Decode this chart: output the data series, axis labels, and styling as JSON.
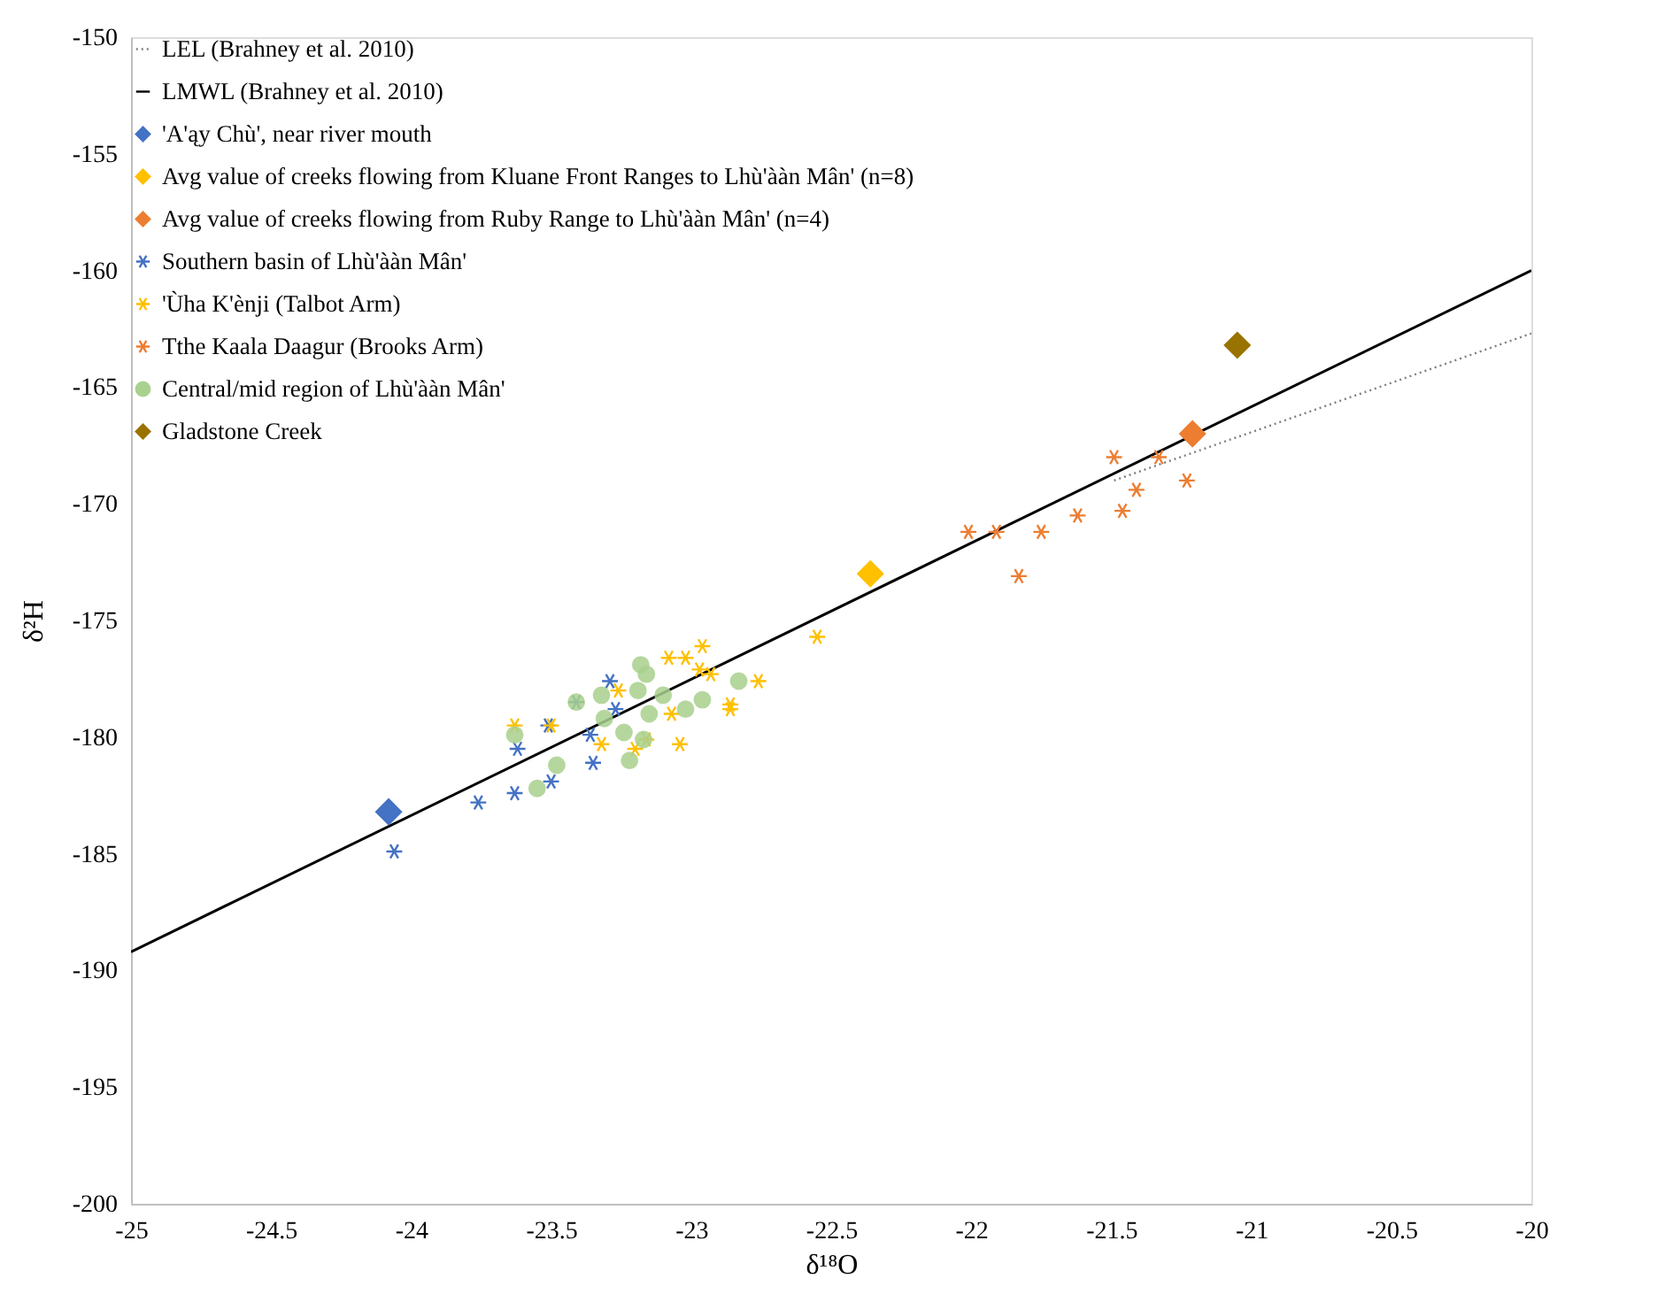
{
  "chart_data": {
    "type": "scatter",
    "xlabel": "δ¹⁸O",
    "ylabel": "δ²H",
    "xlim": [
      -25,
      -20
    ],
    "xticks": [
      -25,
      -24.5,
      -24,
      -23.5,
      -23,
      -22.5,
      -22,
      -21.5,
      -21,
      -20.5,
      -20
    ],
    "ylim": [
      -200,
      -150
    ],
    "yticks": [
      -200,
      -195,
      -190,
      -185,
      -180,
      -175,
      -170,
      -165,
      -160,
      -155,
      -150
    ],
    "grid": false,
    "legend": "top left",
    "series": [
      {
        "name": "LEL (Brahney et al. 2010)",
        "type": "line",
        "line_style": "dotted",
        "color": "#7f7f7f",
        "x": [
          -21.49,
          -20
        ],
        "values": [
          -169.0,
          -162.7
        ]
      },
      {
        "name": "LMWL (Brahney et al. 2010)",
        "type": "line",
        "line_style": "solid",
        "color": "#000000",
        "x": [
          -25,
          -20
        ],
        "values": [
          -189.2,
          -160.0
        ]
      },
      {
        "name": "'A'ąy Chù', near river mouth",
        "marker": "diamond",
        "color": "#4472c4",
        "x": [
          -24.08
        ],
        "values": [
          -183.2
        ]
      },
      {
        "name": "Avg value of creeks flowing  from Kluane Front Ranges to Lhù'ààn Mân' (n=8)",
        "marker": "diamond",
        "color": "#ffc000",
        "x": [
          -22.36
        ],
        "values": [
          -173.0
        ]
      },
      {
        "name": "Avg value of creeks flowing  from Ruby Range  to Lhù'ààn Mân' (n=4)",
        "marker": "diamond",
        "color": "#ed7d31",
        "x": [
          -21.21
        ],
        "values": [
          -167.0
        ]
      },
      {
        "name": "Southern basin of Lhù'ààn Mân'",
        "marker": "cross",
        "color": "#4472c4",
        "x": [
          -24.06,
          -23.76,
          -23.63,
          -23.5,
          -23.62,
          -23.51,
          -23.35,
          -23.36,
          -23.29,
          -23.41,
          -23.27
        ],
        "values": [
          -184.9,
          -182.8,
          -182.4,
          -181.9,
          -180.5,
          -179.5,
          -181.1,
          -179.9,
          -177.6,
          -178.5,
          -178.8
        ]
      },
      {
        "name": "'Ùha K'ènji (Talbot Arm)",
        "marker": "cross",
        "color": "#ffc000",
        "x": [
          -23.63,
          -23.5,
          -23.32,
          -23.2,
          -23.16,
          -23.26,
          -23.08,
          -23.02,
          -22.96,
          -22.97,
          -22.93,
          -23.07,
          -23.04,
          -22.86,
          -22.86,
          -22.76,
          -22.55
        ],
        "values": [
          -179.5,
          -179.5,
          -180.3,
          -180.5,
          -180.1,
          -178.0,
          -176.6,
          -176.6,
          -176.1,
          -177.1,
          -177.3,
          -179.0,
          -180.3,
          -178.6,
          -178.8,
          -177.6,
          -175.7
        ]
      },
      {
        "name": "Tthe Kaala Daagur (Brooks Arm)",
        "marker": "cross",
        "color": "#ed7d31",
        "x": [
          -22.01,
          -21.91,
          -21.75,
          -21.62,
          -21.46,
          -21.41,
          -21.49,
          -21.33,
          -21.23,
          -21.83
        ],
        "values": [
          -171.2,
          -171.2,
          -171.2,
          -170.5,
          -170.3,
          -169.4,
          -168.0,
          -168.0,
          -169.0,
          -173.1
        ]
      },
      {
        "name": "Central/mid region of Lhù'ààn Mân'",
        "marker": "circle",
        "color": "#a9d18e",
        "x": [
          -23.55,
          -23.48,
          -23.24,
          -23.22,
          -23.17,
          -23.41,
          -23.32,
          -23.18,
          -23.16,
          -23.19,
          -23.15,
          -23.1,
          -23.02,
          -22.96,
          -22.83,
          -23.63,
          -23.31
        ],
        "values": [
          -182.2,
          -181.2,
          -179.8,
          -181.0,
          -180.1,
          -178.5,
          -178.2,
          -176.9,
          -177.3,
          -178.0,
          -179.0,
          -178.2,
          -178.8,
          -178.4,
          -177.6,
          -179.9,
          -179.2
        ]
      },
      {
        "name": "Gladstone Creek",
        "marker": "diamond",
        "color": "#997300",
        "x": [
          -21.05
        ],
        "values": [
          -163.2
        ]
      }
    ]
  }
}
